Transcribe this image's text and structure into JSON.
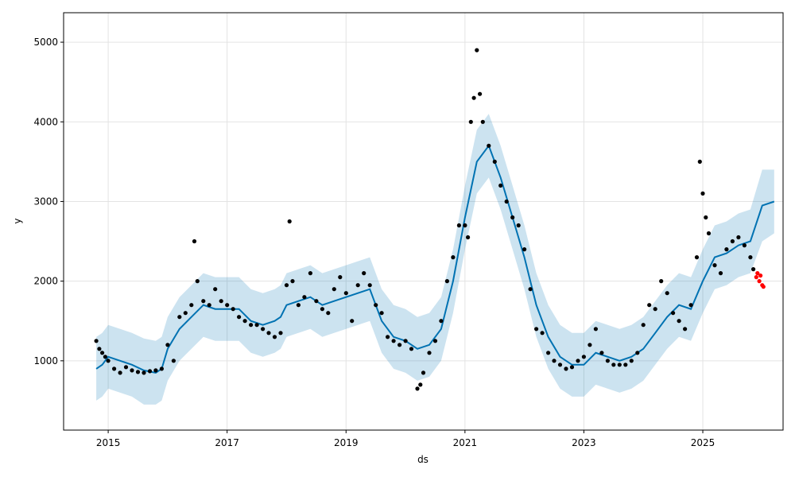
{
  "chart_data": {
    "type": "scatter",
    "title": "",
    "xlabel": "ds",
    "ylabel": "y",
    "xlim": [
      2014.25,
      2026.35
    ],
    "ylim": [
      130,
      5370
    ],
    "x_ticks": [
      {
        "value": 2015,
        "label": "2015"
      },
      {
        "value": 2017,
        "label": "2017"
      },
      {
        "value": 2019,
        "label": "2019"
      },
      {
        "value": 2021,
        "label": "2021"
      },
      {
        "value": 2023,
        "label": "2023"
      },
      {
        "value": 2025,
        "label": "2025"
      }
    ],
    "y_ticks": [
      {
        "value": 1000,
        "label": "1000"
      },
      {
        "value": 2000,
        "label": "2000"
      },
      {
        "value": 3000,
        "label": "3000"
      },
      {
        "value": 4000,
        "label": "4000"
      },
      {
        "value": 5000,
        "label": "5000"
      }
    ],
    "grid": true,
    "colors": {
      "observed": "#000000",
      "recent_observed": "#ff0000",
      "forecast_line": "#0072b2",
      "uncertainty_band": "#0072b2"
    },
    "series": [
      {
        "role": "observed",
        "x": [
          2014.8,
          2014.85,
          2014.9,
          2014.95,
          2015.0,
          2015.1,
          2015.2,
          2015.3,
          2015.4,
          2015.5,
          2015.6,
          2015.7,
          2015.8,
          2015.9,
          2016.0,
          2016.1,
          2016.2,
          2016.3,
          2016.4,
          2016.45,
          2016.5,
          2016.6,
          2016.7,
          2016.8,
          2016.9,
          2017.0,
          2017.1,
          2017.2,
          2017.3,
          2017.4,
          2017.5,
          2017.6,
          2017.7,
          2017.8,
          2017.9,
          2018.0,
          2018.05,
          2018.1,
          2018.2,
          2018.3,
          2018.4,
          2018.5,
          2018.6,
          2018.7,
          2018.8,
          2018.9,
          2019.0,
          2019.1,
          2019.2,
          2019.3,
          2019.4,
          2019.5,
          2019.6,
          2019.7,
          2019.8,
          2019.9,
          2020.0,
          2020.1,
          2020.2,
          2020.25,
          2020.3,
          2020.4,
          2020.5,
          2020.6,
          2020.7,
          2020.8,
          2020.9,
          2021.0,
          2021.05,
          2021.1,
          2021.15,
          2021.2,
          2021.25,
          2021.3,
          2021.4,
          2021.5,
          2021.6,
          2021.7,
          2021.8,
          2021.9,
          2022.0,
          2022.1,
          2022.2,
          2022.3,
          2022.4,
          2022.5,
          2022.6,
          2022.7,
          2022.8,
          2022.9,
          2023.0,
          2023.1,
          2023.2,
          2023.3,
          2023.4,
          2023.5,
          2023.6,
          2023.7,
          2023.8,
          2023.9,
          2024.0,
          2024.1,
          2024.2,
          2024.3,
          2024.4,
          2024.5,
          2024.6,
          2024.7,
          2024.8,
          2024.9,
          2024.95,
          2025.0,
          2025.05,
          2025.1,
          2025.2,
          2025.3,
          2025.4,
          2025.5,
          2025.6,
          2025.7,
          2025.8,
          2025.85
        ],
        "y": [
          1250,
          1150,
          1100,
          1050,
          1000,
          900,
          850,
          920,
          880,
          860,
          850,
          870,
          880,
          900,
          1200,
          1000,
          1550,
          1600,
          1700,
          2500,
          2000,
          1750,
          1700,
          1900,
          1750,
          1700,
          1650,
          1550,
          1500,
          1450,
          1450,
          1400,
          1350,
          1300,
          1350,
          1950,
          2750,
          2000,
          1700,
          1800,
          2100,
          1750,
          1650,
          1600,
          1900,
          2050,
          1850,
          1500,
          1950,
          2100,
          1950,
          1700,
          1600,
          1300,
          1250,
          1200,
          1250,
          1150,
          650,
          700,
          850,
          1100,
          1250,
          1500,
          2000,
          2300,
          2700,
          2700,
          2550,
          4000,
          4300,
          4900,
          4350,
          4000,
          3700,
          3500,
          3200,
          3000,
          2800,
          2700,
          2400,
          1900,
          1400,
          1350,
          1100,
          1000,
          950,
          900,
          920,
          1000,
          1050,
          1200,
          1400,
          1100,
          1000,
          950,
          950,
          950,
          1000,
          1100,
          1450,
          1700,
          1650,
          2000,
          1850,
          1600,
          1500,
          1400,
          1700,
          2300,
          3500,
          3100,
          2800,
          2600,
          2200,
          2100,
          2400,
          2500,
          2550,
          2450,
          2300,
          2150
        ]
      },
      {
        "role": "recent_observed",
        "x": [
          2025.9,
          2025.92,
          2025.95,
          2025.97,
          2026.0,
          2026.02
        ],
        "y": [
          2050,
          2100,
          2000,
          2070,
          1950,
          1930
        ]
      },
      {
        "role": "forecast",
        "x": [
          2014.8,
          2014.9,
          2015.0,
          2015.2,
          2015.4,
          2015.6,
          2015.8,
          2015.9,
          2016.0,
          2016.2,
          2016.4,
          2016.6,
          2016.8,
          2017.0,
          2017.2,
          2017.4,
          2017.6,
          2017.8,
          2017.9,
          2018.0,
          2018.2,
          2018.4,
          2018.6,
          2018.8,
          2019.0,
          2019.2,
          2019.4,
          2019.6,
          2019.8,
          2020.0,
          2020.2,
          2020.4,
          2020.6,
          2020.8,
          2021.0,
          2021.2,
          2021.4,
          2021.6,
          2021.8,
          2022.0,
          2022.2,
          2022.4,
          2022.6,
          2022.8,
          2023.0,
          2023.2,
          2023.4,
          2023.6,
          2023.8,
          2024.0,
          2024.2,
          2024.4,
          2024.6,
          2024.8,
          2025.0,
          2025.2,
          2025.4,
          2025.6,
          2025.8,
          2026.0,
          2026.2
        ],
        "y": [
          900,
          950,
          1050,
          1000,
          950,
          880,
          850,
          900,
          1150,
          1400,
          1550,
          1700,
          1650,
          1650,
          1650,
          1500,
          1450,
          1500,
          1550,
          1700,
          1750,
          1800,
          1700,
          1750,
          1800,
          1850,
          1900,
          1500,
          1300,
          1250,
          1150,
          1200,
          1400,
          2000,
          2800,
          3500,
          3700,
          3300,
          2800,
          2300,
          1700,
          1300,
          1050,
          950,
          950,
          1100,
          1050,
          1000,
          1050,
          1150,
          1350,
          1550,
          1700,
          1650,
          2000,
          2300,
          2350,
          2450,
          2500,
          2950,
          3000
        ]
      },
      {
        "role": "uncertainty_upper",
        "x": [
          2014.8,
          2014.9,
          2015.0,
          2015.2,
          2015.4,
          2015.6,
          2015.8,
          2015.9,
          2016.0,
          2016.2,
          2016.4,
          2016.6,
          2016.8,
          2017.0,
          2017.2,
          2017.4,
          2017.6,
          2017.8,
          2017.9,
          2018.0,
          2018.2,
          2018.4,
          2018.6,
          2018.8,
          2019.0,
          2019.2,
          2019.4,
          2019.6,
          2019.8,
          2020.0,
          2020.2,
          2020.4,
          2020.6,
          2020.8,
          2021.0,
          2021.2,
          2021.4,
          2021.6,
          2021.8,
          2022.0,
          2022.2,
          2022.4,
          2022.6,
          2022.8,
          2023.0,
          2023.2,
          2023.4,
          2023.6,
          2023.8,
          2024.0,
          2024.2,
          2024.4,
          2024.6,
          2024.8,
          2025.0,
          2025.2,
          2025.4,
          2025.6,
          2025.8,
          2026.0,
          2026.2
        ],
        "y": [
          1300,
          1350,
          1450,
          1400,
          1350,
          1280,
          1250,
          1300,
          1550,
          1800,
          1950,
          2100,
          2050,
          2050,
          2050,
          1900,
          1850,
          1900,
          1950,
          2100,
          2150,
          2200,
          2100,
          2150,
          2200,
          2250,
          2300,
          1900,
          1700,
          1650,
          1550,
          1600,
          1800,
          2400,
          3200,
          3900,
          4100,
          3700,
          3200,
          2700,
          2100,
          1700,
          1450,
          1350,
          1350,
          1500,
          1450,
          1400,
          1450,
          1550,
          1750,
          1950,
          2100,
          2050,
          2400,
          2700,
          2750,
          2850,
          2900,
          3400,
          3400
        ]
      },
      {
        "role": "uncertainty_lower",
        "x": [
          2014.8,
          2014.9,
          2015.0,
          2015.2,
          2015.4,
          2015.6,
          2015.8,
          2015.9,
          2016.0,
          2016.2,
          2016.4,
          2016.6,
          2016.8,
          2017.0,
          2017.2,
          2017.4,
          2017.6,
          2017.8,
          2017.9,
          2018.0,
          2018.2,
          2018.4,
          2018.6,
          2018.8,
          2019.0,
          2019.2,
          2019.4,
          2019.6,
          2019.8,
          2020.0,
          2020.2,
          2020.4,
          2020.6,
          2020.8,
          2021.0,
          2021.2,
          2021.4,
          2021.6,
          2021.8,
          2022.0,
          2022.2,
          2022.4,
          2022.6,
          2022.8,
          2023.0,
          2023.2,
          2023.4,
          2023.6,
          2023.8,
          2024.0,
          2024.2,
          2024.4,
          2024.6,
          2024.8,
          2025.0,
          2025.2,
          2025.4,
          2025.6,
          2025.8,
          2026.0,
          2026.2
        ],
        "y": [
          500,
          550,
          650,
          600,
          550,
          450,
          450,
          500,
          750,
          1000,
          1150,
          1300,
          1250,
          1250,
          1250,
          1100,
          1050,
          1100,
          1150,
          1300,
          1350,
          1400,
          1300,
          1350,
          1400,
          1450,
          1500,
          1100,
          900,
          850,
          750,
          800,
          1000,
          1600,
          2400,
          3100,
          3300,
          2900,
          2400,
          1900,
          1300,
          900,
          650,
          550,
          550,
          700,
          650,
          600,
          650,
          750,
          950,
          1150,
          1300,
          1250,
          1600,
          1900,
          1950,
          2050,
          2100,
          2500,
          2600
        ]
      }
    ]
  }
}
